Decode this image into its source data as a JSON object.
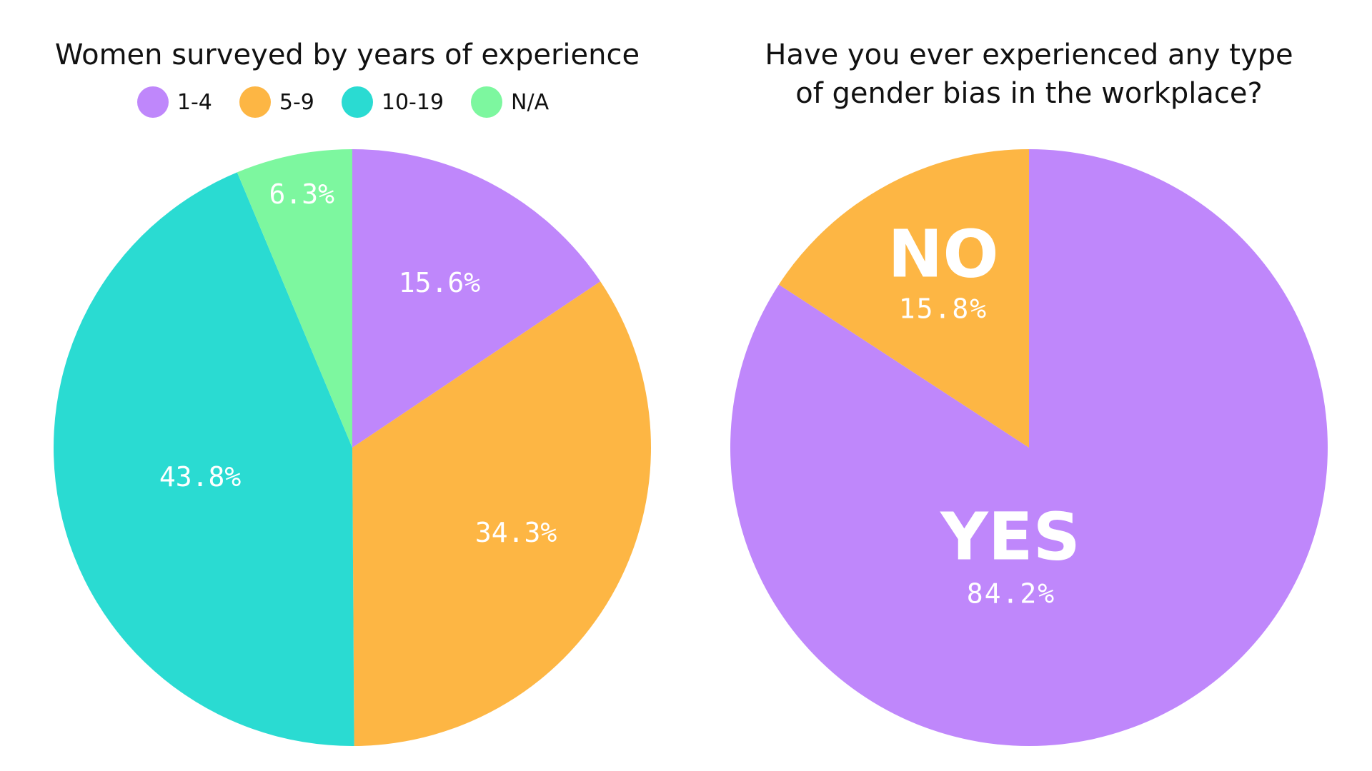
{
  "chart_data": [
    {
      "type": "pie",
      "title": "Women surveyed by years of experience",
      "legend_position": "top",
      "slices": [
        {
          "name": "1-4",
          "value": 15.6,
          "label": "15.6%",
          "color": "#BF87FB"
        },
        {
          "name": "5-9",
          "value": 34.3,
          "label": "34.3%",
          "color": "#FDB644"
        },
        {
          "name": "10-19",
          "value": 43.8,
          "label": "43.8%",
          "color": "#2ADBD2"
        },
        {
          "name": "N/A",
          "value": 6.3,
          "label": "6.3%",
          "color": "#7DF79F"
        }
      ]
    },
    {
      "type": "pie",
      "title": "Have you ever experienced any type of gender bias in the workplace?",
      "slices": [
        {
          "name": "YES",
          "value": 84.2,
          "label": "84.2%",
          "color": "#BF87FB"
        },
        {
          "name": "NO",
          "value": 15.8,
          "label": "15.8%",
          "color": "#FDB644"
        }
      ]
    }
  ]
}
